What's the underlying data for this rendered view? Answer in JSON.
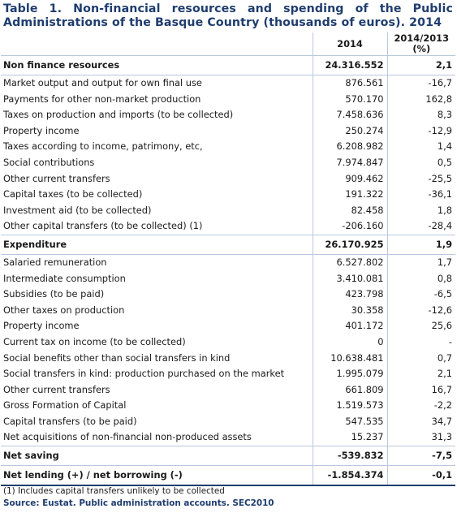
{
  "title": "Table 1. Non-financial resources and spending of the Public Administrations of the Basque Country (thousands of euros). 2014",
  "headers": {
    "col2": "2014",
    "col3_line1": "2014/2013",
    "col3_line2": "(%)"
  },
  "rows": [
    {
      "label": "Non finance resources",
      "value": "24.316.552",
      "change": "2,1",
      "bold": true
    },
    {
      "label": "Market output and output for own final use",
      "value": "876.561",
      "change": "-16,7"
    },
    {
      "label": "Payments for other non-market production",
      "value": "570.170",
      "change": "162,8"
    },
    {
      "label": "Taxes on production and imports (to be collected)",
      "value": "7.458.636",
      "change": "8,3"
    },
    {
      "label": "Property income",
      "value": "250.274",
      "change": "-12,9"
    },
    {
      "label": "Taxes according to income, patrimony, etc,",
      "value": "6.208.982",
      "change": "1,4"
    },
    {
      "label": "Social contributions",
      "value": "7.974.847",
      "change": "0,5"
    },
    {
      "label": "Other current transfers",
      "value": "909.462",
      "change": "-25,5"
    },
    {
      "label": "Capital taxes (to be collected)",
      "value": "191.322",
      "change": "-36,1"
    },
    {
      "label": "Investment aid (to be collected)",
      "value": "82.458",
      "change": "1,8"
    },
    {
      "label": "Other capital transfers (to be collected) (1)",
      "value": "-206.160",
      "change": "-28,4"
    },
    {
      "label": "Expenditure",
      "value": "26.170.925",
      "change": "1,9",
      "bold": true
    },
    {
      "label": "Salaried remuneration",
      "value": "6.527.802",
      "change": "1,7"
    },
    {
      "label": "Intermediate consumption",
      "value": "3.410.081",
      "change": "0,8"
    },
    {
      "label": "Subsidies (to be paid)",
      "value": "423.798",
      "change": "-6,5"
    },
    {
      "label": "Other taxes on production",
      "value": "30.358",
      "change": "-12,6"
    },
    {
      "label": "Property income",
      "value": "401.172",
      "change": "25,6"
    },
    {
      "label": "Current tax on income (to be collected)",
      "value": "0",
      "change": "-"
    },
    {
      "label": "Social benefits other than social transfers in kind",
      "value": "10.638.481",
      "change": "0,7"
    },
    {
      "label": "Social transfers in kind: production purchased on the market",
      "value": "1.995.079",
      "change": "2,1"
    },
    {
      "label": "Other current transfers",
      "value": "661.809",
      "change": "16,7"
    },
    {
      "label": "Gross Formation of Capital",
      "value": "1.519.573",
      "change": "-2,2"
    },
    {
      "label": "Capital transfers (to be paid)",
      "value": "547.535",
      "change": "34,7"
    },
    {
      "label": "Net acquisitions of non-financial non-produced assets",
      "value": "15.237",
      "change": "31,3"
    },
    {
      "label": "Net saving",
      "value": "-539.832",
      "change": "-7,5",
      "bold": true
    },
    {
      "label": "Net lending (+) / net borrowing (-)",
      "value": "-1.854.374",
      "change": "-0,1",
      "bold": true
    }
  ],
  "footnote": "(1) Includes capital transfers unlikely to be collected",
  "source": "Source: Eustat. Public administration accounts. SEC2010"
}
